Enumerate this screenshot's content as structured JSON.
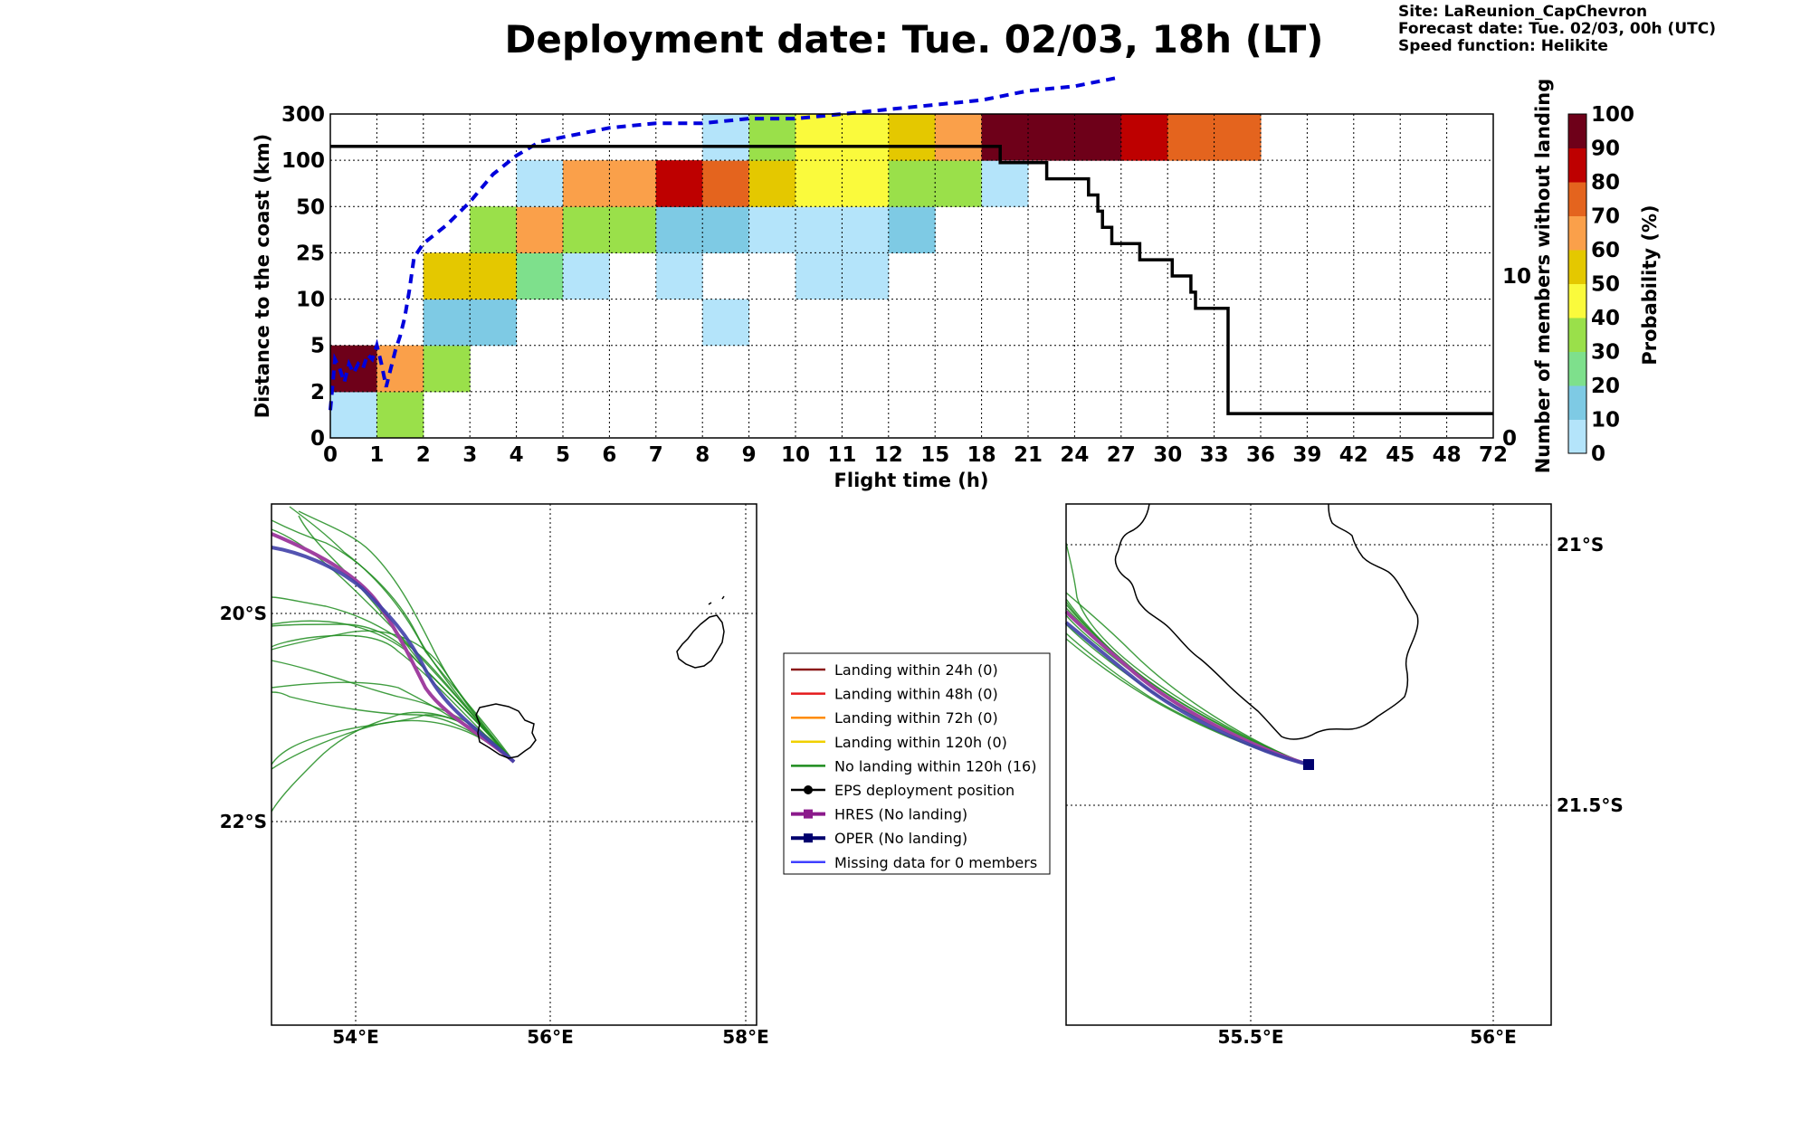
{
  "header": {
    "title": "Deployment date: Tue. 02/03, 18h (LT)",
    "site": "Site: LaReunion_CapChevron",
    "forecast": "Forecast date: Tue. 02/03, 00h (UTC)",
    "speed": "Speed function: Helikite"
  },
  "chart_data": [
    {
      "type": "heatmap",
      "xlabel": "Flight time (h)",
      "ylabel": "Distance to the coast (km)",
      "ylabel_right": "Number of members without landing",
      "colorbar_label": "Probability (%)",
      "x_ticks": [
        "0",
        "1",
        "2",
        "3",
        "4",
        "5",
        "6",
        "7",
        "8",
        "9",
        "10",
        "11",
        "12",
        "15",
        "18",
        "21",
        "24",
        "27",
        "30",
        "33",
        "36",
        "39",
        "42",
        "45",
        "48",
        "72"
      ],
      "y_ticks": [
        "0",
        "2",
        "5",
        "10",
        "25",
        "50",
        "100",
        "300"
      ],
      "right_ticks": [
        "0",
        "10"
      ],
      "right_ylim": [
        0,
        20
      ],
      "colorbar": {
        "ticks": [
          "0",
          "10",
          "20",
          "30",
          "40",
          "50",
          "60",
          "70",
          "80",
          "90",
          "100"
        ],
        "colors": [
          "#b4e4fa",
          "#7ecae4",
          "#7ee08c",
          "#9ae04a",
          "#fafa3c",
          "#e4c800",
          "#faa04a",
          "#e4641e",
          "#be0000",
          "#6e0019"
        ]
      },
      "cells": [
        {
          "x": 0,
          "y": 0,
          "p": 0
        },
        {
          "x": 1,
          "y": 0,
          "p": 30
        },
        {
          "x": 0,
          "y": 1,
          "p": 90
        },
        {
          "x": 1,
          "y": 1,
          "p": 60
        },
        {
          "x": 2,
          "y": 1,
          "p": 30
        },
        {
          "x": 2,
          "y": 2,
          "p": 10
        },
        {
          "x": 3,
          "y": 2,
          "p": 10
        },
        {
          "x": 8,
          "y": 2,
          "p": 0
        },
        {
          "x": 2,
          "y": 3,
          "p": 50
        },
        {
          "x": 3,
          "y": 3,
          "p": 50
        },
        {
          "x": 4,
          "y": 3,
          "p": 20
        },
        {
          "x": 5,
          "y": 3,
          "p": 0
        },
        {
          "x": 7,
          "y": 3,
          "p": 0
        },
        {
          "x": 10,
          "y": 3,
          "p": 0
        },
        {
          "x": 11,
          "y": 3,
          "p": 0
        },
        {
          "x": 3,
          "y": 4,
          "p": 30
        },
        {
          "x": 4,
          "y": 4,
          "p": 60
        },
        {
          "x": 5,
          "y": 4,
          "p": 30
        },
        {
          "x": 6,
          "y": 4,
          "p": 30
        },
        {
          "x": 7,
          "y": 4,
          "p": 10
        },
        {
          "x": 8,
          "y": 4,
          "p": 10
        },
        {
          "x": 9,
          "y": 4,
          "p": 0
        },
        {
          "x": 10,
          "y": 4,
          "p": 0
        },
        {
          "x": 11,
          "y": 4,
          "p": 0
        },
        {
          "x": 12,
          "y": 4,
          "p": 10
        },
        {
          "x": 4,
          "y": 5,
          "p": 0
        },
        {
          "x": 5,
          "y": 5,
          "p": 60
        },
        {
          "x": 6,
          "y": 5,
          "p": 60
        },
        {
          "x": 7,
          "y": 5,
          "p": 80
        },
        {
          "x": 8,
          "y": 5,
          "p": 70
        },
        {
          "x": 9,
          "y": 5,
          "p": 50
        },
        {
          "x": 10,
          "y": 5,
          "p": 40
        },
        {
          "x": 11,
          "y": 5,
          "p": 40
        },
        {
          "x": 12,
          "y": 5,
          "p": 30
        },
        {
          "x": 13,
          "y": 5,
          "p": 30
        },
        {
          "x": 14,
          "y": 5,
          "p": 0
        },
        {
          "x": 8,
          "y": 6,
          "p": 0
        },
        {
          "x": 9,
          "y": 6,
          "p": 30
        },
        {
          "x": 10,
          "y": 6,
          "p": 40
        },
        {
          "x": 11,
          "y": 6,
          "p": 40
        },
        {
          "x": 12,
          "y": 6,
          "p": 50
        },
        {
          "x": 13,
          "y": 6,
          "p": 60
        },
        {
          "x": 14,
          "y": 6,
          "p": 90
        },
        {
          "x": 15,
          "y": 6,
          "p": 90
        },
        {
          "x": 16,
          "y": 6,
          "p": 90
        },
        {
          "x": 17,
          "y": 6,
          "p": 80
        },
        {
          "x": 18,
          "y": 6,
          "p": 70
        },
        {
          "x": 19,
          "y": 6,
          "p": 70
        }
      ],
      "median_distance": {
        "x": [
          0,
          0.1,
          0.2,
          0.3,
          0.4,
          0.5,
          0.6,
          0.7,
          0.8,
          0.9,
          1.0,
          1.1,
          1.2,
          1.3,
          1.4,
          1.5,
          1.6,
          1.7,
          1.8,
          2.0,
          2.5,
          3.0,
          3.5,
          4.0,
          4.5,
          5.0,
          6.0,
          7.0,
          8.0,
          9.0,
          10.0,
          11.0,
          12.0,
          13.0,
          14.0,
          15.0,
          16.0,
          17.0
        ],
        "y": [
          0.6,
          1.7,
          1.5,
          1.2,
          1.6,
          1.4,
          1.6,
          1.5,
          1.8,
          1.7,
          2.0,
          1.6,
          1.1,
          1.5,
          1.9,
          2.2,
          2.6,
          3.2,
          3.9,
          4.2,
          4.6,
          5.1,
          5.7,
          6.1,
          6.4,
          6.5,
          6.7,
          6.8,
          6.8,
          6.9,
          6.9,
          7.0,
          7.1,
          7.2,
          7.3,
          7.5,
          7.6,
          7.8
        ]
      },
      "members_without_landing": {
        "x": [
          0,
          14.4,
          14.4,
          15.4,
          15.4,
          16.3,
          16.3,
          16.5,
          16.5,
          16.6,
          16.6,
          16.8,
          16.8,
          17.4,
          17.4,
          18.1,
          18.1,
          18.5,
          18.5,
          18.6,
          18.6,
          19.3,
          19.3,
          25
        ],
        "y": [
          18,
          18,
          17,
          17,
          16,
          16,
          15,
          15,
          14,
          14,
          13,
          13,
          12,
          12,
          11,
          11,
          10,
          10,
          9,
          9,
          8,
          8,
          1.5,
          1.5
        ]
      }
    }
  ],
  "maps": {
    "left": {
      "lon_ticks": [
        "54°E",
        "56°E",
        "58°E"
      ],
      "lat_ticks": [
        "20°S",
        "22°S"
      ]
    },
    "right": {
      "lon_ticks": [
        "55.5°E",
        "56°E"
      ],
      "lat_ticks": [
        "21°S",
        "21.5°S"
      ]
    }
  },
  "legend": [
    {
      "label": "Landing within 24h (0)",
      "color": "#8b1a1a",
      "marker": "none"
    },
    {
      "label": "Landing within 48h (0)",
      "color": "#e41a1c",
      "marker": "none"
    },
    {
      "label": "Landing within 72h (0)",
      "color": "#ff8c00",
      "marker": "none"
    },
    {
      "label": "Landing within 120h (0)",
      "color": "#f0d000",
      "marker": "none"
    },
    {
      "label": "No landing within 120h (16)",
      "color": "#1e8c1e",
      "marker": "none"
    },
    {
      "label": "EPS deployment position",
      "color": "#000000",
      "marker": "circle"
    },
    {
      "label": "HRES (No landing)",
      "color": "#8b1a8b",
      "marker": "square"
    },
    {
      "label": "OPER (No landing)",
      "color": "#00006e",
      "marker": "square"
    },
    {
      "label": "Missing data for 0 members",
      "color": "#4040ff",
      "marker": "none"
    }
  ]
}
